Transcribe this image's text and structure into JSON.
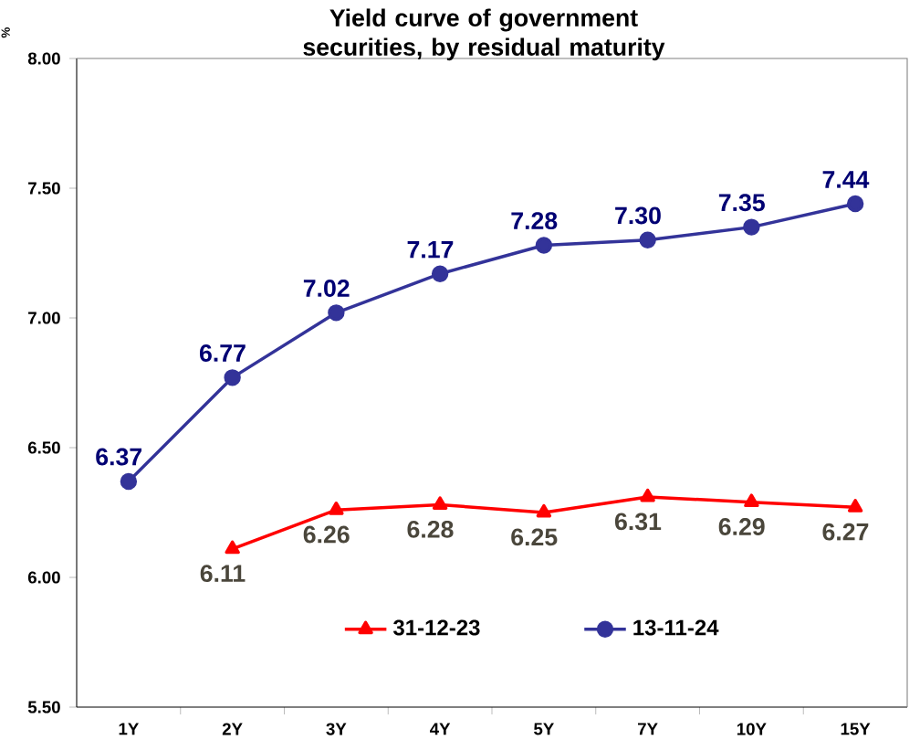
{
  "chart_data": {
    "type": "line",
    "title": "Yield curve of government securities, by residual maturity",
    "ylabel": "%",
    "categories": [
      "1Y",
      "2Y",
      "3Y",
      "4Y",
      "5Y",
      "7Y",
      "10Y",
      "15Y"
    ],
    "series": [
      {
        "name": "31-12-23",
        "color": "#ff0000",
        "marker": "triangle",
        "values": [
          null,
          6.11,
          6.26,
          6.28,
          6.25,
          6.31,
          6.29,
          6.27
        ],
        "value_labels": [
          null,
          "6.11",
          "6.26",
          "6.28",
          "6.25",
          "6.31",
          "6.29",
          "6.27"
        ]
      },
      {
        "name": "13-11-24",
        "color": "#333399",
        "marker": "circle",
        "values": [
          6.37,
          6.77,
          7.02,
          7.17,
          7.28,
          7.3,
          7.35,
          7.44
        ],
        "value_labels": [
          "6.37",
          "6.77",
          "7.02",
          "7.17",
          "7.28",
          "7.30",
          "7.35",
          "7.44"
        ]
      }
    ],
    "ylim": [
      5.5,
      8.0
    ],
    "yticks": [
      {
        "value": 5.5,
        "label": "5.50"
      },
      {
        "value": 6.0,
        "label": "6.00"
      },
      {
        "value": 6.5,
        "label": "6.50"
      },
      {
        "value": 7.0,
        "label": "7.00"
      },
      {
        "value": 7.5,
        "label": "7.50"
      },
      {
        "value": 8.0,
        "label": "8.00"
      }
    ],
    "grid": false,
    "legend": "bottom",
    "line_style": "solid"
  }
}
